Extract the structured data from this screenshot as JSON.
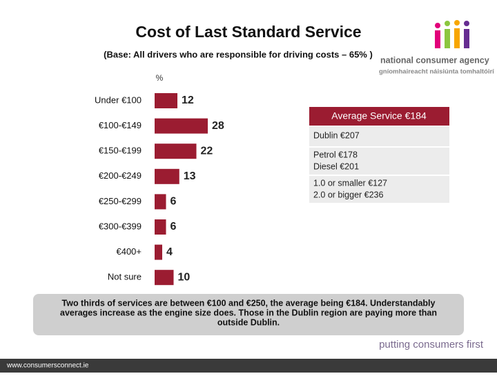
{
  "chart_data": {
    "type": "bar",
    "orientation": "horizontal",
    "title": "Cost of Last Standard Service",
    "subtitle": "(Base:  All drivers who are responsible for driving costs – 65% )",
    "unit_label": "%",
    "categories": [
      "Under €100",
      "€100-€149",
      "€150-€199",
      "€200-€249",
      "€250-€299",
      "€300-€399",
      "€400+",
      "Not sure"
    ],
    "values": [
      12,
      28,
      22,
      13,
      6,
      6,
      4,
      10
    ],
    "color": "#9b1c31"
  },
  "panel": {
    "header": "Average Service €184",
    "rows": [
      [
        "Dublin €207"
      ],
      [
        "Petrol €178",
        "Diesel €201"
      ],
      [
        "1.0 or smaller €127",
        "2.0 or bigger €236"
      ]
    ]
  },
  "summary": [
    "Two thirds of services are between €100 and €250, the average being €184.  Understandably",
    "averages increase as the engine size does.  Those in the Dublin region are paying more than",
    "outside Dublin."
  ],
  "logo": {
    "name": "national consumer agency",
    "irish": "gníomhaireacht náisiúnta tomhaltóirí"
  },
  "tagline": "putting consumers first",
  "website": "www.consumersconnect.ie"
}
